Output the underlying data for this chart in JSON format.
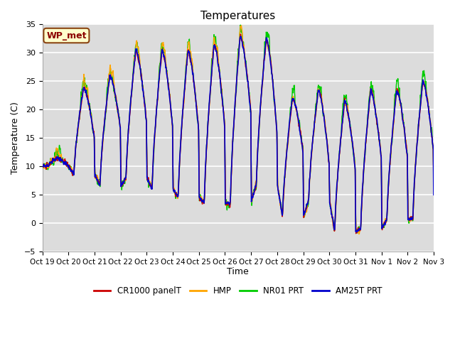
{
  "title": "Temperatures",
  "xlabel": "Time",
  "ylabel": "Temperature (C)",
  "ylim": [
    -5,
    35
  ],
  "xlim": [
    0,
    360
  ],
  "plot_bg_color": "#dcdcdc",
  "grid_color": "white",
  "annotation_text": "WP_met",
  "annotation_bg": "#ffffcc",
  "annotation_border": "#8B4513",
  "annotation_text_color": "#8B0000",
  "tick_labels": [
    "Oct 19",
    "Oct 20",
    "Oct 21",
    "Oct 22",
    "Oct 23",
    "Oct 24",
    "Oct 25",
    "Oct 26",
    "Oct 27",
    "Oct 28",
    "Oct 29",
    "Oct 30",
    "Oct 31",
    "Nov 1",
    "Nov 2",
    "Nov 3"
  ],
  "series": {
    "CR1000 panelT": {
      "color": "#cc0000",
      "lw": 1.0
    },
    "HMP": {
      "color": "#ffa500",
      "lw": 1.0
    },
    "NR01 PRT": {
      "color": "#00cc00",
      "lw": 1.0
    },
    "AM25T PRT": {
      "color": "#0000cc",
      "lw": 1.2
    }
  },
  "day_peaks": [
    11.5,
    24.0,
    26.0,
    30.5,
    30.5,
    30.5,
    31.5,
    33.0,
    32.5,
    22.0,
    23.5,
    21.5,
    23.5,
    23.5,
    25.0,
    26.0
  ],
  "day_troughs": [
    10.0,
    8.5,
    6.5,
    8.0,
    6.0,
    4.5,
    3.5,
    3.5,
    7.0,
    1.0,
    4.0,
    -1.5,
    -1.0,
    0.5,
    1.0,
    1.5
  ],
  "peak_hour": 14,
  "trough_hour": 5
}
